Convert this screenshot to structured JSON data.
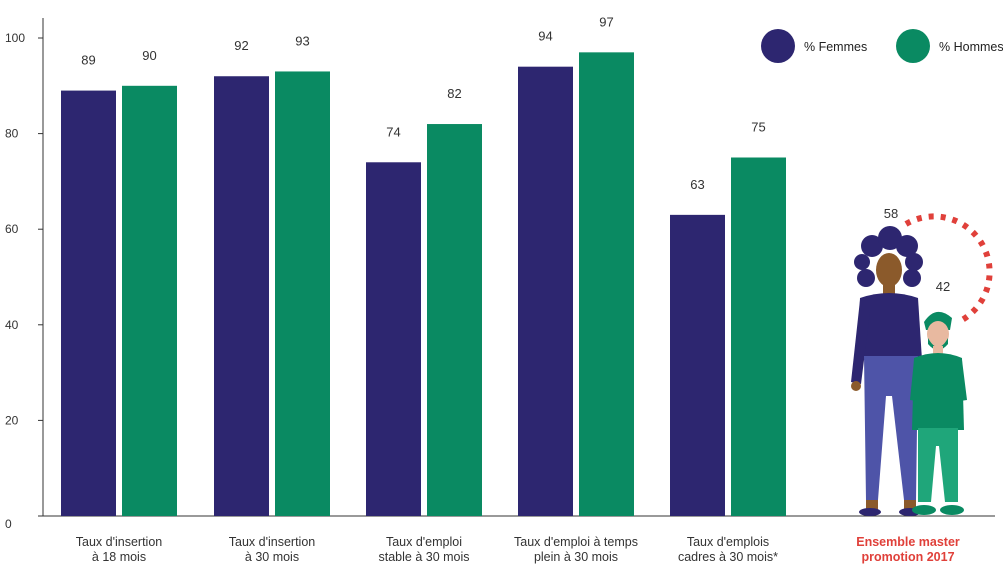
{
  "chart_data": {
    "type": "bar",
    "categories": [
      [
        "Taux d'insertion",
        "à 18 mois"
      ],
      [
        "Taux d'insertion",
        "à 30 mois"
      ],
      [
        "Taux d'emploi",
        "stable à 30 mois"
      ],
      [
        "Taux d'emploi à temps",
        "plein à 30 mois"
      ],
      [
        "Taux d'emplois",
        "cadres à 30 mois*"
      ]
    ],
    "series": [
      {
        "name": "% Femmes",
        "color": "#2d2670",
        "values": [
          89,
          92,
          74,
          94,
          63
        ]
      },
      {
        "name": "% Hommes",
        "color": "#0a8a62",
        "values": [
          90,
          93,
          82,
          97,
          75
        ]
      }
    ],
    "ylim": [
      0,
      100
    ],
    "yticks": [
      0,
      20,
      40,
      60,
      80,
      100
    ],
    "grid": false,
    "legend_position": "top-right",
    "summary": {
      "label": [
        "Ensemble master",
        "promotion 2017"
      ],
      "label_color": "#e0403a",
      "femmes": 58,
      "hommes": 42,
      "ring_color": "#e0403a"
    }
  }
}
